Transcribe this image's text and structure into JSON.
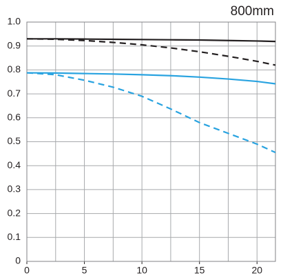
{
  "chart_data": {
    "type": "line",
    "title": "800mm",
    "x": [
      0,
      2.5,
      5,
      7.5,
      10,
      12.5,
      15,
      17.5,
      20,
      21.6
    ],
    "series": [
      {
        "color": "#231f20",
        "dash": false,
        "values": [
          0.93,
          0.93,
          0.929,
          0.928,
          0.927,
          0.926,
          0.925,
          0.923,
          0.921,
          0.919
        ]
      },
      {
        "color": "#231f20",
        "dash": true,
        "values": [
          0.93,
          0.928,
          0.923,
          0.915,
          0.905,
          0.892,
          0.876,
          0.857,
          0.836,
          0.82
        ]
      },
      {
        "color": "#29a3e0",
        "dash": false,
        "values": [
          0.788,
          0.787,
          0.785,
          0.783,
          0.78,
          0.776,
          0.77,
          0.762,
          0.752,
          0.742
        ]
      },
      {
        "color": "#29a3e0",
        "dash": true,
        "values": [
          0.788,
          0.78,
          0.757,
          0.728,
          0.69,
          0.637,
          0.58,
          0.535,
          0.49,
          0.455
        ]
      }
    ],
    "xlim": [
      0,
      21.6
    ],
    "ylim": [
      0,
      1.0
    ],
    "xticks": [
      0,
      5,
      10,
      15,
      20
    ],
    "xgrid": [
      2.5,
      5,
      7.5,
      10,
      12.5,
      15,
      17.5,
      20
    ],
    "yticks": [
      0,
      0.1,
      0.2,
      0.3,
      0.4,
      0.5,
      0.6,
      0.7,
      0.8,
      0.9,
      {
        "value": 1.0,
        "label": "1.0"
      }
    ],
    "grid": true
  }
}
